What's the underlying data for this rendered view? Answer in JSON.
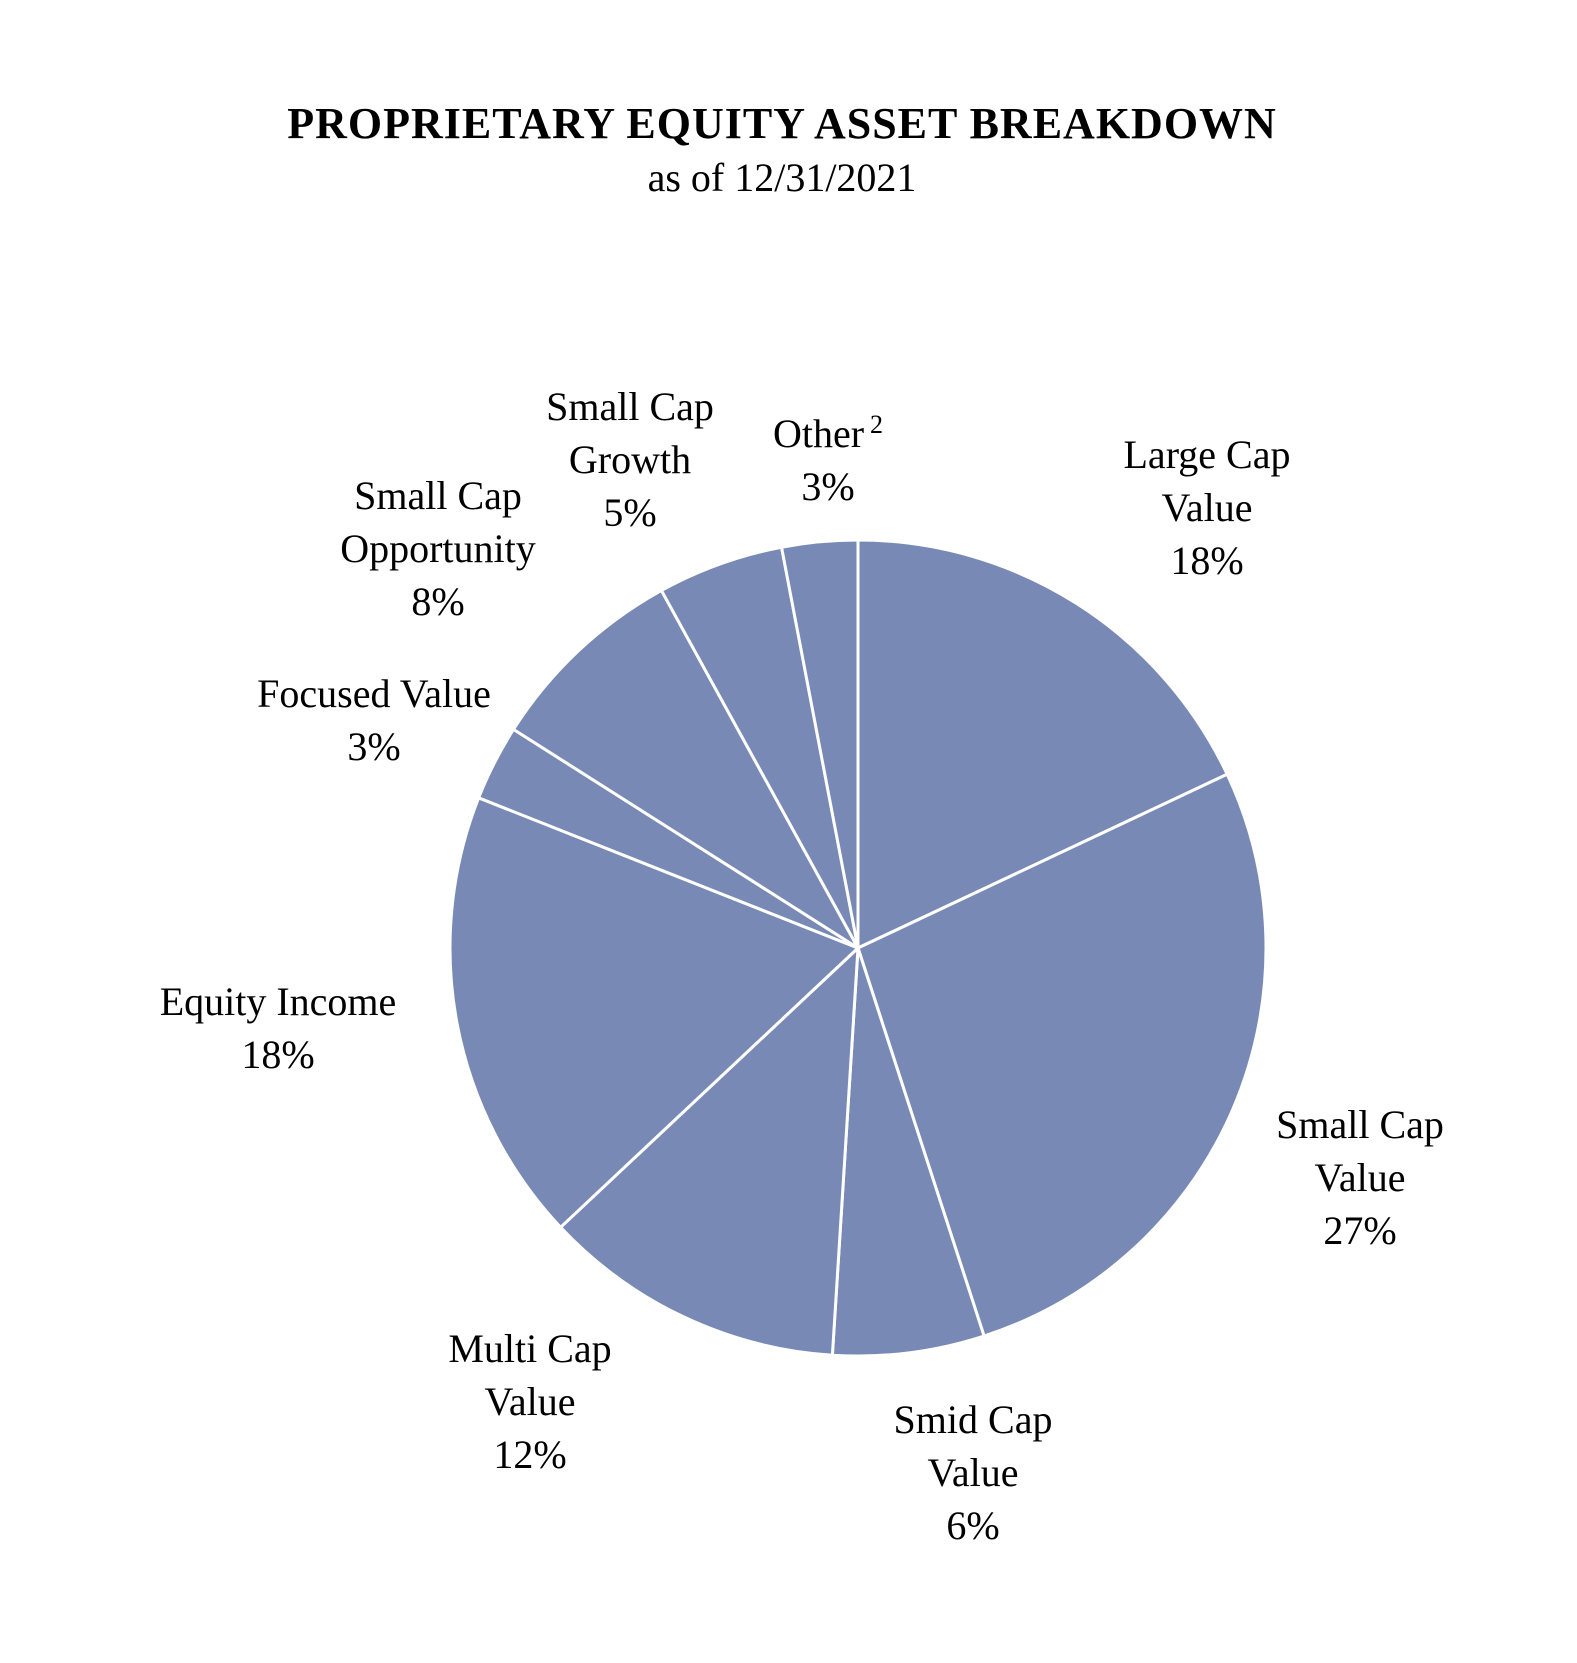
{
  "chart_data": {
    "type": "pie",
    "title": "PROPRIETARY EQUITY ASSET BREAKDOWN",
    "subtitle": "as of 12/31/2021",
    "start_angle_deg": 0,
    "direction": "clockwise",
    "slices": [
      {
        "name": "Large Cap Value",
        "label_lines": [
          "Large Cap",
          "Value"
        ],
        "value": 18,
        "value_label": "18%"
      },
      {
        "name": "Small Cap Value",
        "label_lines": [
          "Small Cap",
          "Value"
        ],
        "value": 27,
        "value_label": "27%"
      },
      {
        "name": "Smid Cap Value",
        "label_lines": [
          "Smid Cap",
          "Value"
        ],
        "value": 6,
        "value_label": "6%"
      },
      {
        "name": "Multi Cap Value",
        "label_lines": [
          "Multi Cap",
          "Value"
        ],
        "value": 12,
        "value_label": "12%"
      },
      {
        "name": "Equity Income",
        "label_lines": [
          "Equity Income"
        ],
        "value": 18,
        "value_label": "18%"
      },
      {
        "name": "Focused Value",
        "label_lines": [
          "Focused Value"
        ],
        "value": 3,
        "value_label": "3%"
      },
      {
        "name": "Small Cap Opportunity",
        "label_lines": [
          "Small Cap",
          "Opportunity"
        ],
        "value": 8,
        "value_label": "8%"
      },
      {
        "name": "Small Cap Growth",
        "label_lines": [
          "Small Cap",
          "Growth"
        ],
        "value": 5,
        "value_label": "5%"
      },
      {
        "name": "Other",
        "label_lines": [
          "Other"
        ],
        "superscript": "2",
        "value": 3,
        "value_label": "3%"
      }
    ],
    "colors": {
      "slice_fill": "#7889b5",
      "slice_stroke": "#ffffff",
      "text": "#000000"
    }
  }
}
